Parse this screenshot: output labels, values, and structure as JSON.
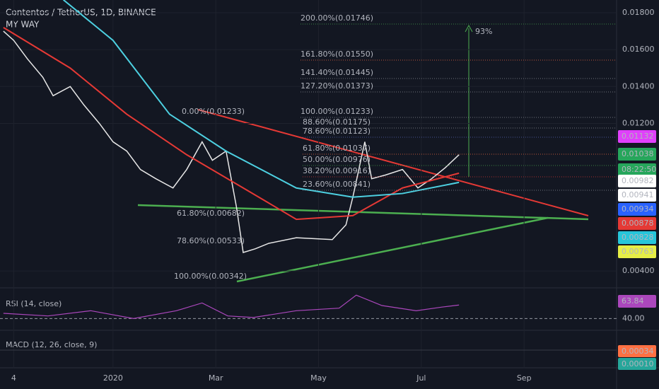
{
  "header": {
    "title": "Contentos / TetherUS, 1D, BINANCE",
    "indicator": "MY WAY"
  },
  "chart_data": {
    "type": "line",
    "xlim": [
      -8,
      352
    ],
    "ylim": [
      0.00316,
      0.01869
    ],
    "xticks": [
      {
        "value": 0,
        "label": "4"
      },
      {
        "value": 58,
        "label": "2020"
      },
      {
        "value": 118,
        "label": "Mar"
      },
      {
        "value": 178,
        "label": "May"
      },
      {
        "value": 238,
        "label": "Jul"
      },
      {
        "value": 298,
        "label": "Sep"
      }
    ],
    "yticks": [
      {
        "value": 0.018,
        "label": "0.01800"
      },
      {
        "value": 0.016,
        "label": "0.01600"
      },
      {
        "value": 0.014,
        "label": "0.01400"
      },
      {
        "value": 0.012,
        "label": "0.01200"
      },
      {
        "value": 0.004,
        "label": "0.00400"
      }
    ],
    "grid": true,
    "series": [
      {
        "color": "#e8e8e8",
        "x": [
          -6,
          0,
          8,
          17,
          23,
          33,
          41,
          50,
          58,
          66,
          74,
          83,
          93,
          101,
          110,
          116,
          124,
          130,
          134,
          141,
          149,
          165,
          186,
          194,
          198,
          205,
          209,
          217,
          227,
          236,
          244,
          252,
          260
        ],
        "values": [
          0.017,
          0.0165,
          0.0155,
          0.0145,
          0.0135,
          0.014,
          0.013,
          0.012,
          0.011,
          0.0105,
          0.0095,
          0.009,
          0.0085,
          0.0095,
          0.011,
          0.01,
          0.0105,
          0.0075,
          0.005,
          0.0052,
          0.0055,
          0.0058,
          0.0057,
          0.0065,
          0.008,
          0.011,
          0.009,
          0.0092,
          0.0095,
          0.0085,
          0.009,
          0.0096,
          0.0103
        ]
      },
      {
        "color": "#e53935",
        "x": [
          -6,
          33,
          66,
          101,
          134,
          165,
          198,
          227,
          260
        ],
        "values": [
          0.0172,
          0.015,
          0.0125,
          0.0103,
          0.0085,
          0.0068,
          0.007,
          0.0085,
          0.0093
        ]
      },
      {
        "color": "#4dd0e1",
        "x": [
          29,
          58,
          91,
          124,
          165,
          198,
          227,
          260
        ],
        "values": [
          0.0187,
          0.0165,
          0.0125,
          0.0105,
          0.0085,
          0.008,
          0.0082,
          0.0088
        ]
      }
    ],
    "annotations": [
      "200.00%(0.01746)",
      "161.80%(0.01550)",
      "141.40%(0.01445)",
      "127.20%(0.01373)",
      "100.00%(0.01233)",
      "88.60%(0.01175)",
      "78.60%(0.01123)",
      "61.80%(0.01037)",
      "50.00%(0.00976)",
      "38.20%(0.00916)",
      "23.60%(0.00841)",
      "0.00%(0.01233)",
      "61.80%(0.00682)",
      "78.60%(0.00533)",
      "100.00%(0.00342)",
      "93%"
    ],
    "price_badges": [
      {
        "label": "0.01132",
        "color": "#e040fb"
      },
      {
        "label": "0.01038",
        "color": "#26a65b"
      },
      {
        "label": "08:22:50",
        "color": "#26a65b"
      },
      {
        "label": "0.00982",
        "color": "#ffffff"
      },
      {
        "label": "0.00941",
        "color": "#ffffff"
      },
      {
        "label": "0.00934",
        "color": "#2962ff"
      },
      {
        "label": "0.00878",
        "color": "#e53935"
      },
      {
        "label": "0.00828",
        "color": "#26c6da"
      },
      {
        "label": "0.00763",
        "color": "#e6ee46"
      }
    ],
    "rsi": {
      "label": "RSI (14, close)",
      "ylim": [
        20,
        95
      ],
      "ytick": {
        "value": 40,
        "label": "40.00"
      },
      "value_label": "63.84",
      "x": [
        -6,
        20,
        45,
        70,
        95,
        110,
        125,
        140,
        165,
        190,
        200,
        215,
        235,
        250,
        260
      ],
      "values": [
        50,
        45,
        55,
        40,
        55,
        70,
        45,
        42,
        55,
        60,
        85,
        65,
        55,
        62,
        66
      ]
    },
    "macd": {
      "label": "MACD (12, 26, close, 9)",
      "value_labels": [
        "0.00034",
        "0.00010"
      ]
    }
  }
}
